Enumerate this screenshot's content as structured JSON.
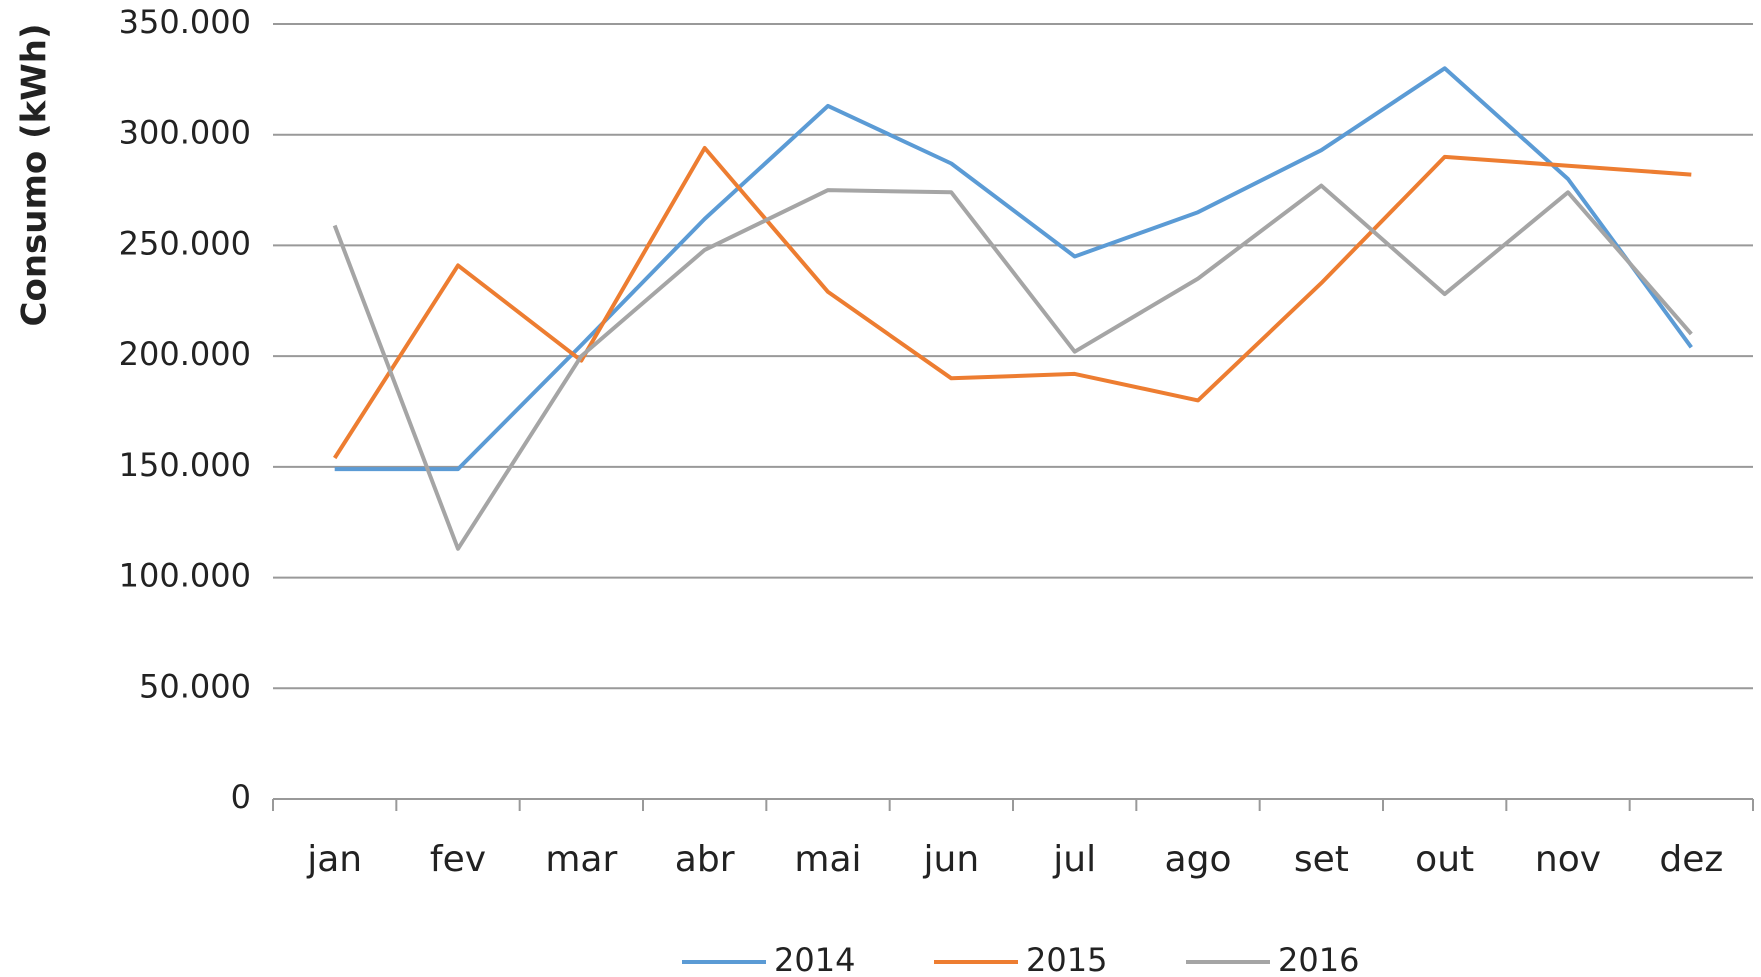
{
  "chart_data": {
    "type": "line",
    "y_label": "Consumo (kWh)",
    "categories": [
      "jan",
      "fev",
      "mar",
      "abr",
      "mai",
      "jun",
      "jul",
      "ago",
      "set",
      "out",
      "nov",
      "dez"
    ],
    "series": [
      {
        "name": "2014",
        "color": "#5b9bd5",
        "values": [
          149000,
          149000,
          205000,
          262000,
          313000,
          287000,
          245000,
          265000,
          293000,
          330000,
          280000,
          204000
        ]
      },
      {
        "name": "2015",
        "color": "#ed7d31",
        "values": [
          154000,
          241000,
          198000,
          294000,
          229000,
          190000,
          192000,
          180000,
          233000,
          290000,
          286000,
          282000
        ]
      },
      {
        "name": "2016",
        "color": "#a5a5a5",
        "values": [
          259000,
          113000,
          200000,
          248000,
          275000,
          274000,
          202000,
          235000,
          277000,
          228000,
          274000,
          210000
        ]
      }
    ],
    "ylim": [
      0,
      350000
    ],
    "yticks": [
      0,
      {
        "value": 50000,
        "label": "50.000"
      },
      {
        "value": 100000,
        "label": "100.000"
      },
      {
        "value": 150000,
        "label": "150.000"
      },
      {
        "value": 200000,
        "label": "200.000"
      },
      {
        "value": 250000,
        "label": "250.000"
      },
      {
        "value": 300000,
        "label": "300.000"
      },
      {
        "value": 350000,
        "label": "350.000"
      }
    ],
    "grid": true,
    "legend": "bottom"
  }
}
